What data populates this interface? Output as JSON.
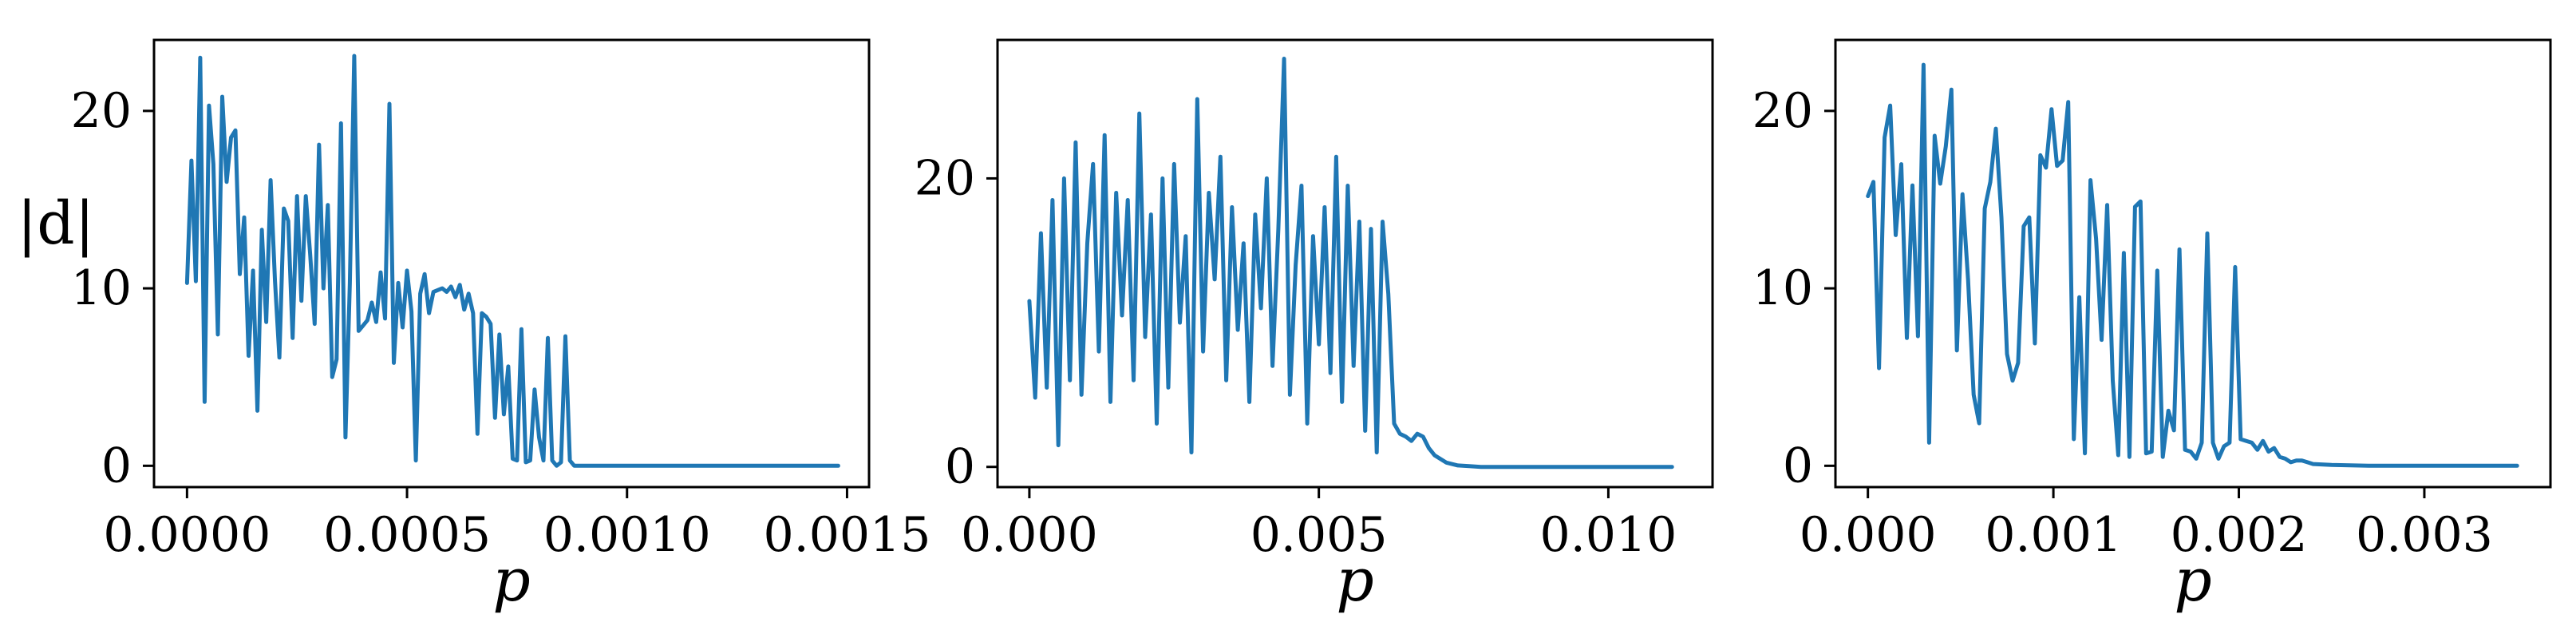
{
  "colors": {
    "series": "#1f77b4",
    "axes": "#000000",
    "background": "#ffffff"
  },
  "chart_data": [
    {
      "type": "line",
      "xlabel": "p",
      "ylabel": "|d|",
      "xlim": [
        -7.5e-05,
        0.00155
      ],
      "ylim": [
        -1.2,
        24.0
      ],
      "xticks": [
        0.0,
        0.0005,
        0.001,
        0.0015
      ],
      "xtick_labels": [
        "0.0000",
        "0.0005",
        "0.0010",
        "0.0015"
      ],
      "yticks": [
        0,
        10,
        20
      ],
      "ytick_labels": [
        "0",
        "10",
        "20"
      ],
      "grid": false,
      "series": [
        {
          "x": [
            0.0,
            1e-05,
            2e-05,
            3e-05,
            4e-05,
            5e-05,
            6e-05,
            7e-05,
            8e-05,
            9e-05,
            0.0001,
            0.00011,
            0.00012,
            0.00013,
            0.00014,
            0.00015,
            0.00016,
            0.00017,
            0.00018,
            0.00019,
            0.0002,
            0.00021,
            0.00022,
            0.00023,
            0.00024,
            0.00025,
            0.00026,
            0.00027,
            0.00028,
            0.00029,
            0.0003,
            0.00031,
            0.00032,
            0.00033,
            0.00034,
            0.00035,
            0.00036,
            0.00037,
            0.00038,
            0.00039,
            0.0004,
            0.00041,
            0.00042,
            0.00043,
            0.00044,
            0.00045,
            0.00046,
            0.00047,
            0.00048,
            0.00049,
            0.0005,
            0.00051,
            0.00052,
            0.00053,
            0.00054,
            0.00055,
            0.00056,
            0.00057,
            0.00058,
            0.00059,
            0.0006,
            0.00061,
            0.00062,
            0.00063,
            0.00064,
            0.00065,
            0.00066,
            0.00067,
            0.00068,
            0.00069,
            0.0007,
            0.00071,
            0.00072,
            0.00073,
            0.00074,
            0.00075,
            0.00076,
            0.00077,
            0.00078,
            0.00079,
            0.0008,
            0.00081,
            0.00082,
            0.00083,
            0.00084,
            0.00085,
            0.00086,
            0.00087,
            0.00088,
            0.0009,
            0.001,
            0.0011,
            0.0012,
            0.0013,
            0.0014,
            0.00148
          ],
          "y": [
            10.3,
            17.2,
            10.4,
            23.0,
            3.6,
            20.3,
            17.0,
            7.4,
            20.8,
            16.0,
            18.5,
            18.9,
            10.8,
            14.0,
            6.2,
            11.0,
            3.1,
            13.3,
            8.1,
            16.1,
            10.4,
            6.1,
            14.5,
            13.8,
            7.2,
            15.2,
            9.3,
            15.2,
            11.9,
            8.0,
            18.1,
            10.0,
            14.7,
            5.0,
            6.0,
            19.3,
            1.6,
            10.3,
            23.1,
            7.6,
            7.9,
            8.2,
            9.2,
            8.1,
            10.9,
            8.3,
            20.4,
            5.8,
            10.3,
            7.8,
            11.0,
            8.7,
            0.3,
            9.7,
            10.8,
            8.6,
            9.8,
            9.9,
            10.0,
            9.8,
            10.1,
            9.5,
            10.2,
            8.8,
            9.7,
            8.6,
            1.8,
            8.6,
            8.4,
            8.0,
            2.7,
            7.4,
            2.9,
            5.6,
            0.4,
            0.3,
            7.7,
            0.2,
            0.3,
            4.3,
            1.6,
            0.3,
            7.2,
            0.3,
            0.0,
            0.2,
            7.3,
            0.3,
            0.0,
            0.0,
            0.0,
            0.0,
            0.0,
            0.0,
            0.0,
            0.0
          ]
        }
      ]
    },
    {
      "type": "line",
      "xlabel": "p",
      "ylabel": "",
      "xlim": [
        -0.00055,
        0.0118
      ],
      "ylim": [
        -1.4,
        29.6
      ],
      "xticks": [
        0.0,
        0.005,
        0.01
      ],
      "xtick_labels": [
        "0.000",
        "0.005",
        "0.010"
      ],
      "yticks": [
        0,
        20
      ],
      "ytick_labels": [
        "0",
        "20"
      ],
      "grid": false,
      "series": [
        {
          "x": [
            0.0,
            0.0001,
            0.0002,
            0.0003,
            0.0004,
            0.0005,
            0.0006,
            0.0007,
            0.0008,
            0.0009,
            0.001,
            0.0011,
            0.0012,
            0.0013,
            0.0014,
            0.0015,
            0.0016,
            0.0017,
            0.0018,
            0.0019,
            0.002,
            0.0021,
            0.0022,
            0.0023,
            0.0024,
            0.0025,
            0.0026,
            0.0027,
            0.0028,
            0.0029,
            0.003,
            0.0031,
            0.0032,
            0.0033,
            0.0034,
            0.0035,
            0.0036,
            0.0037,
            0.0038,
            0.0039,
            0.004,
            0.0041,
            0.0042,
            0.0043,
            0.0044,
            0.0045,
            0.0046,
            0.0047,
            0.0048,
            0.0049,
            0.005,
            0.0051,
            0.0052,
            0.0053,
            0.0054,
            0.0055,
            0.0056,
            0.0057,
            0.0058,
            0.0059,
            0.006,
            0.0061,
            0.0062,
            0.0063,
            0.0064,
            0.0065,
            0.0066,
            0.0067,
            0.0068,
            0.0069,
            0.007,
            0.0072,
            0.0074,
            0.0076,
            0.0078,
            0.008,
            0.009,
            0.01,
            0.0111
          ],
          "y": [
            11.5,
            4.8,
            16.2,
            5.5,
            18.5,
            1.5,
            20.0,
            6.0,
            22.5,
            5.0,
            15.5,
            21.0,
            8.0,
            23.0,
            4.5,
            19.0,
            10.5,
            18.5,
            6.0,
            24.5,
            9.0,
            17.5,
            3.0,
            20.0,
            5.5,
            21.0,
            10.0,
            16.0,
            1.0,
            25.5,
            8.0,
            19.0,
            13.0,
            21.5,
            6.0,
            18.0,
            9.5,
            15.5,
            4.5,
            17.5,
            11.0,
            20.0,
            7.0,
            16.5,
            28.3,
            5.0,
            14.0,
            19.5,
            3.0,
            16.0,
            8.5,
            18.0,
            6.5,
            21.5,
            4.5,
            19.5,
            7.0,
            17.0,
            2.5,
            16.5,
            1.0,
            17.0,
            12.0,
            3.0,
            2.3,
            2.1,
            1.8,
            2.3,
            2.1,
            1.3,
            0.8,
            0.3,
            0.1,
            0.05,
            0.0,
            0.0,
            0.0,
            0.0,
            0.0
          ]
        }
      ]
    },
    {
      "type": "line",
      "xlabel": "p",
      "ylabel": "",
      "xlim": [
        -0.000175,
        0.00368
      ],
      "ylim": [
        -1.2,
        24.0
      ],
      "xticks": [
        0.0,
        0.001,
        0.002,
        0.003
      ],
      "xtick_labels": [
        "0.000",
        "0.001",
        "0.002",
        "0.003"
      ],
      "yticks": [
        0,
        10,
        20
      ],
      "ytick_labels": [
        "0",
        "10",
        "20"
      ],
      "grid": false,
      "series": [
        {
          "x": [
            0.0,
            3e-05,
            6e-05,
            9e-05,
            0.00012,
            0.00015,
            0.00018,
            0.00021,
            0.00024,
            0.00027,
            0.0003,
            0.00033,
            0.00036,
            0.00039,
            0.00042,
            0.00045,
            0.00048,
            0.00051,
            0.00054,
            0.00057,
            0.0006,
            0.00063,
            0.00066,
            0.00069,
            0.00072,
            0.00075,
            0.00078,
            0.00081,
            0.00084,
            0.00087,
            0.0009,
            0.00093,
            0.00096,
            0.00099,
            0.00102,
            0.00105,
            0.00108,
            0.00111,
            0.00114,
            0.00117,
            0.0012,
            0.00123,
            0.00126,
            0.00129,
            0.00132,
            0.00135,
            0.00138,
            0.00141,
            0.00144,
            0.00147,
            0.0015,
            0.00153,
            0.00156,
            0.00159,
            0.00162,
            0.00165,
            0.00168,
            0.00171,
            0.00174,
            0.00177,
            0.0018,
            0.00183,
            0.00186,
            0.00189,
            0.00192,
            0.00195,
            0.00198,
            0.00201,
            0.00204,
            0.00207,
            0.0021,
            0.00213,
            0.00216,
            0.00219,
            0.00222,
            0.00225,
            0.00228,
            0.00231,
            0.00234,
            0.00237,
            0.0024,
            0.0025,
            0.0027,
            0.003,
            0.0035
          ],
          "y": [
            15.2,
            16.0,
            5.5,
            18.5,
            20.3,
            13.0,
            17.0,
            7.2,
            15.8,
            7.3,
            22.6,
            1.3,
            18.6,
            15.9,
            18.0,
            21.2,
            6.5,
            15.3,
            10.5,
            4.0,
            2.4,
            14.5,
            16.0,
            19.0,
            14.0,
            6.3,
            4.8,
            5.8,
            13.5,
            14.0,
            6.9,
            17.5,
            16.8,
            20.1,
            16.9,
            17.2,
            20.5,
            1.5,
            9.5,
            0.7,
            16.1,
            12.8,
            7.1,
            14.7,
            4.8,
            0.6,
            12.0,
            0.5,
            14.6,
            14.9,
            0.7,
            0.8,
            11.0,
            0.5,
            3.1,
            2.0,
            12.2,
            0.9,
            0.8,
            0.4,
            1.3,
            13.1,
            1.3,
            0.4,
            1.1,
            1.3,
            11.2,
            1.5,
            1.4,
            1.3,
            0.9,
            1.4,
            0.8,
            1.0,
            0.5,
            0.4,
            0.2,
            0.3,
            0.3,
            0.2,
            0.1,
            0.05,
            0.0,
            0.0,
            0.0
          ]
        }
      ]
    }
  ]
}
